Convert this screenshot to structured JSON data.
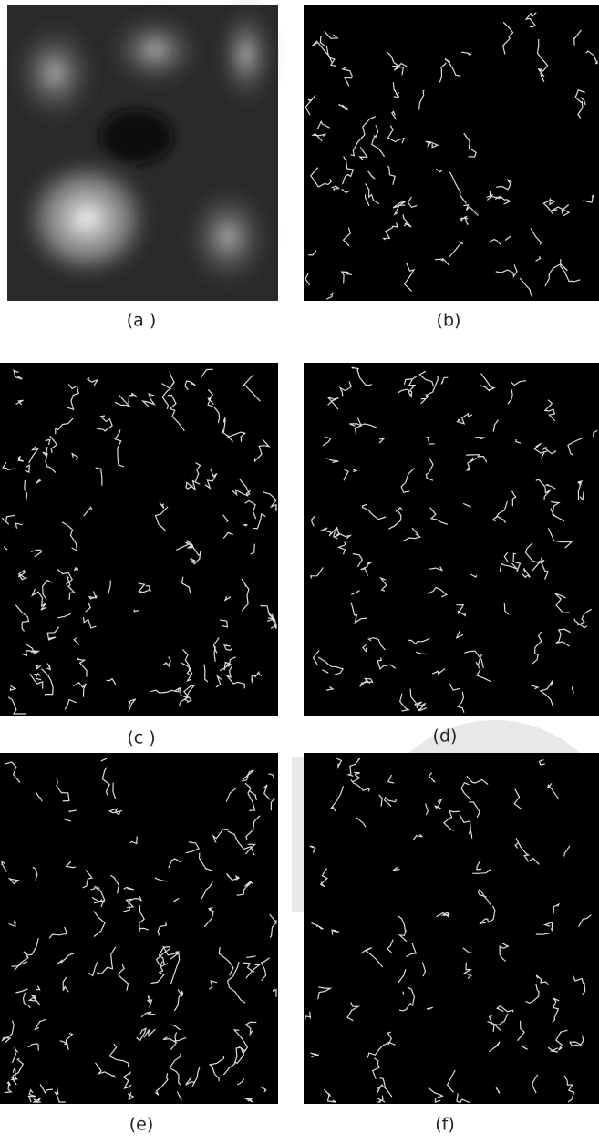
{
  "panels": [
    {
      "label": "(a )"
    },
    {
      "label": "(b)"
    },
    {
      "label": "(c )"
    },
    {
      "label": "(d)"
    },
    {
      "label": "(e)"
    },
    {
      "label": "(f)"
    }
  ]
}
